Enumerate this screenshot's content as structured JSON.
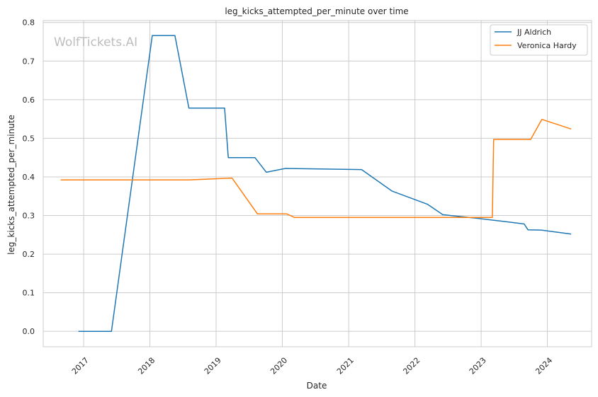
{
  "chart_data": {
    "type": "line",
    "title": "leg_kicks_attempted_per_minute over time",
    "xlabel": "Date",
    "ylabel": "leg_kicks_attempted_per_minute",
    "watermark": "WolfTickets.AI",
    "xlim": [
      "2016-05-23",
      "2024-09-01"
    ],
    "ylim": [
      -0.04,
      0.805
    ],
    "x_ticks": [
      "2017",
      "2018",
      "2019",
      "2020",
      "2021",
      "2022",
      "2023",
      "2024"
    ],
    "y_ticks": [
      "0.0",
      "0.1",
      "0.2",
      "0.3",
      "0.4",
      "0.5",
      "0.6",
      "0.7",
      "0.8"
    ],
    "grid": true,
    "legend_position": "top-right",
    "series": [
      {
        "name": "JJ Aldrich",
        "color": "#1f77b4",
        "points": [
          [
            "2016-12-03",
            0.0
          ],
          [
            "2017-06-03",
            0.0
          ],
          [
            "2018-01-14",
            0.766
          ],
          [
            "2018-05-19",
            0.766
          ],
          [
            "2018-08-04",
            0.578
          ],
          [
            "2019-02-17",
            0.578
          ],
          [
            "2019-03-09",
            0.45
          ],
          [
            "2019-08-03",
            0.45
          ],
          [
            "2019-10-05",
            0.412
          ],
          [
            "2020-01-18",
            0.422
          ],
          [
            "2021-03-13",
            0.419
          ],
          [
            "2021-08-28",
            0.363
          ],
          [
            "2022-03-12",
            0.329
          ],
          [
            "2022-06-04",
            0.302
          ],
          [
            "2022-12-03",
            0.293
          ],
          [
            "2023-06-03",
            0.283
          ],
          [
            "2023-08-26",
            0.278
          ],
          [
            "2023-09-16",
            0.263
          ],
          [
            "2023-12-02",
            0.262
          ],
          [
            "2024-05-11",
            0.252
          ]
        ]
      },
      {
        "name": "Veronica Hardy",
        "color": "#ff7f0e",
        "points": [
          [
            "2016-08-27",
            0.392
          ],
          [
            "2018-07-30",
            0.392
          ],
          [
            "2019-03-30",
            0.397
          ],
          [
            "2019-08-17",
            0.304
          ],
          [
            "2020-01-26",
            0.304
          ],
          [
            "2020-03-07",
            0.295
          ],
          [
            "2023-03-04",
            0.295
          ],
          [
            "2023-03-11",
            0.497
          ],
          [
            "2023-10-01",
            0.497
          ],
          [
            "2023-12-02",
            0.549
          ],
          [
            "2024-05-11",
            0.524
          ]
        ]
      }
    ]
  }
}
